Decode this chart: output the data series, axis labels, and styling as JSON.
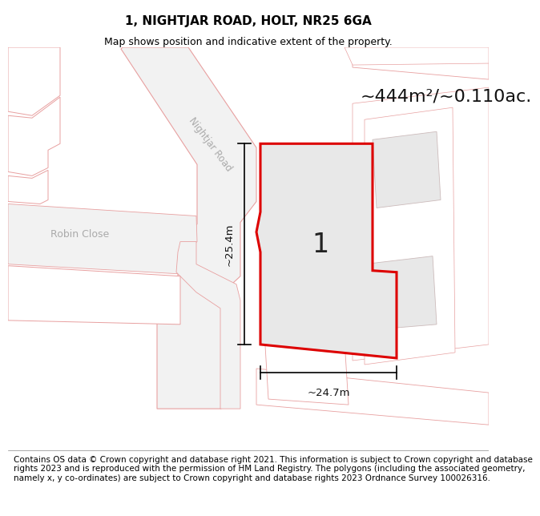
{
  "title": "1, NIGHTJAR ROAD, HOLT, NR25 6GA",
  "subtitle": "Map shows position and indicative extent of the property.",
  "footer": "Contains OS data © Crown copyright and database right 2021. This information is subject to Crown copyright and database rights 2023 and is reproduced with the permission of HM Land Registry. The polygons (including the associated geometry, namely x, y co-ordinates) are subject to Crown copyright and database rights 2023 Ordnance Survey 100026316.",
  "area_label": "~444m²/~0.110ac.",
  "plot_label": "1",
  "dim_height": "~25.4m",
  "dim_width": "~24.7m",
  "bg_color": "white",
  "map_bg": "white",
  "road_outline_color": "#e8a0a0",
  "bldg_fill": "#e8e8e8",
  "bldg_outline": "#ccbbbb",
  "plot_fill": "#e8e8e8",
  "plot_edge_color": "#dd0000",
  "plot_edge_width": 2.2,
  "road_label_color": "#aaaaaa",
  "road_label": "Nightjar Road",
  "close_label": "Robin Close",
  "title_fontsize": 11,
  "subtitle_fontsize": 9,
  "footer_fontsize": 7.5,
  "area_fontsize": 16
}
